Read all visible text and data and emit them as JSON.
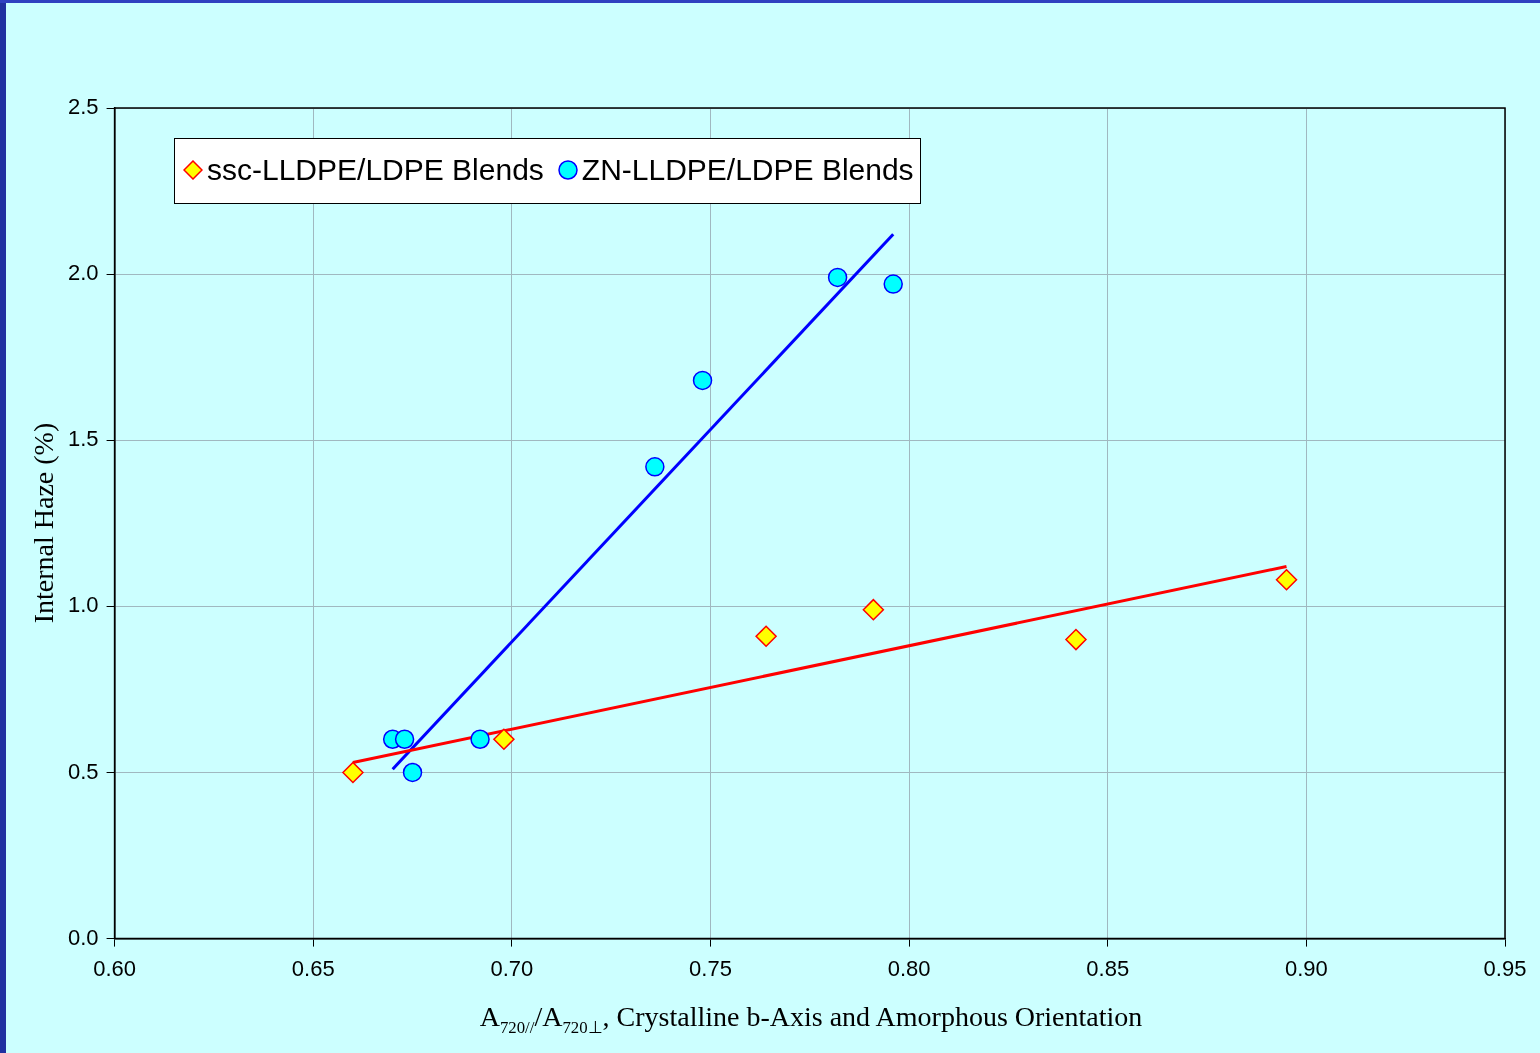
{
  "chart_data": {
    "type": "scatter",
    "xlabel": "A$_{720//}$/A$_{720⊥}$, Crystalline b-Axis and Amorphous Orientation",
    "ylabel": "Internal Haze (%)",
    "xlim": [
      0.6,
      0.95
    ],
    "xticks": [
      {
        "value": 0.6,
        "label": "0.60"
      },
      {
        "value": 0.65,
        "label": "0.65"
      },
      {
        "value": 0.7,
        "label": "0.70"
      },
      {
        "value": 0.75,
        "label": "0.75"
      },
      {
        "value": 0.8,
        "label": "0.80"
      },
      {
        "value": 0.85,
        "label": "0.85"
      },
      {
        "value": 0.9,
        "label": "0.90"
      },
      {
        "value": 0.95,
        "label": "0.95"
      }
    ],
    "ylim": [
      0,
      2.5
    ],
    "yticks": [
      {
        "value": 0,
        "label": "0.0"
      },
      {
        "value": 0.5,
        "label": "0.5"
      },
      {
        "value": 1,
        "label": "1.0"
      },
      {
        "value": 1.5,
        "label": "1.5"
      },
      {
        "value": 2,
        "label": "2.0"
      },
      {
        "value": 2.5,
        "label": "2.5"
      }
    ],
    "grid": true,
    "legend": "top left",
    "series": [
      {
        "name": "ssc-LLDPE/LDPE Blends",
        "marker": "diamond",
        "color": "#ffff00",
        "x": [
          0.66,
          0.698,
          0.764,
          0.791,
          0.842,
          0.895
        ],
        "values": [
          0.5,
          0.6,
          0.91,
          0.99,
          0.9,
          1.08
        ]
      },
      {
        "name": "ZN-LLDPE/LDPE Blends",
        "marker": "circle",
        "color": "#00ffff",
        "x": [
          0.67,
          0.673,
          0.675,
          0.692,
          0.736,
          0.748,
          0.782,
          0.796
        ],
        "values": [
          0.6,
          0.6,
          0.5,
          0.6,
          1.42,
          1.68,
          1.99,
          1.97
        ]
      },
      {
        "type": "line",
        "marker": "none",
        "color": "#ff0000",
        "x": [
          0.66,
          0.895
        ],
        "values": [
          0.53,
          1.12
        ]
      },
      {
        "type": "line",
        "marker": "none",
        "color": "#0000ff",
        "x": [
          0.67,
          0.796
        ],
        "values": [
          0.51,
          2.12
        ]
      }
    ]
  }
}
